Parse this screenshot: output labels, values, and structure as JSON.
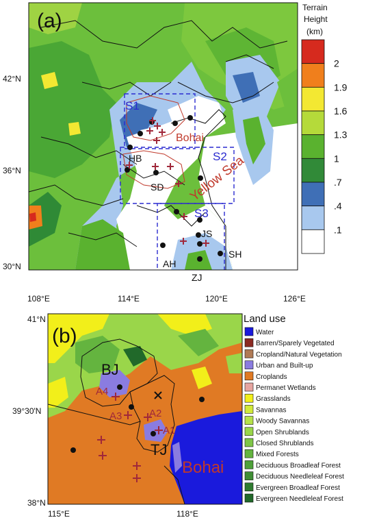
{
  "panel_a": {
    "label": "(a)",
    "colorbar": {
      "title": [
        "Terrain",
        "Height",
        "(km)"
      ],
      "ticks": [
        "2",
        "1.9",
        "1.6",
        "1.3",
        "1",
        ".7",
        ".4",
        ".1"
      ],
      "colors": [
        "#d62a1e",
        "#f07f1c",
        "#f3e832",
        "#b5da3a",
        "#5ab22f",
        "#318a38",
        "#3f6fb6",
        "#a8c8ee",
        "#ffffff"
      ]
    },
    "y_ticks": [
      "42°N",
      "36°N",
      "30°N"
    ],
    "x_ticks": [
      "108°E",
      "114°E",
      "120°E",
      "126°E"
    ],
    "regions": [
      "S1",
      "S2",
      "S3"
    ],
    "provinces": [
      "HB",
      "SD",
      "JS",
      "AH",
      "SH",
      "ZJ"
    ],
    "seas": [
      "Bohai",
      "Yellow Sea"
    ]
  },
  "panel_b": {
    "label": "(b)",
    "y_ticks": [
      "41°N",
      "39°30'N",
      "38°N"
    ],
    "x_ticks": [
      "115°E",
      "118°E"
    ],
    "cities": [
      "BJ",
      "TJ"
    ],
    "sites": [
      "A1",
      "A2",
      "A3",
      "A4"
    ],
    "sea": "Bohai",
    "legend": {
      "title": "Land use",
      "items": [
        {
          "label": "Water",
          "color": "#1a1adc"
        },
        {
          "label": "Barren/Sparely Vegetated",
          "color": "#8b2a22"
        },
        {
          "label": "Cropland/Natural Vegetation",
          "color": "#b07a55"
        },
        {
          "label": "Urban and Built-up",
          "color": "#8a7ce0"
        },
        {
          "label": "Croplands",
          "color": "#e07a24"
        },
        {
          "label": "Permanet Wetlands",
          "color": "#e6a5a0"
        },
        {
          "label": "Grasslands",
          "color": "#f2ef1a"
        },
        {
          "label": "Savannas",
          "color": "#d2ea3a"
        },
        {
          "label": "Woody Savannas",
          "color": "#b6e24a"
        },
        {
          "label": "Open Shrublands",
          "color": "#9ad64a"
        },
        {
          "label": "Closed Shrublands",
          "color": "#7fc647"
        },
        {
          "label": "Mixed Forests",
          "color": "#64b43f"
        },
        {
          "label": "Deciduous Broadleaf Forest",
          "color": "#4ea13a"
        },
        {
          "label": "Deciduous Needleleaf Forest",
          "color": "#3f8e35"
        },
        {
          "label": "Evergreen Broadleaf Forest",
          "color": "#2f7b30"
        },
        {
          "label": "Evergreen Needleleaf Forest",
          "color": "#21692a"
        }
      ]
    }
  }
}
